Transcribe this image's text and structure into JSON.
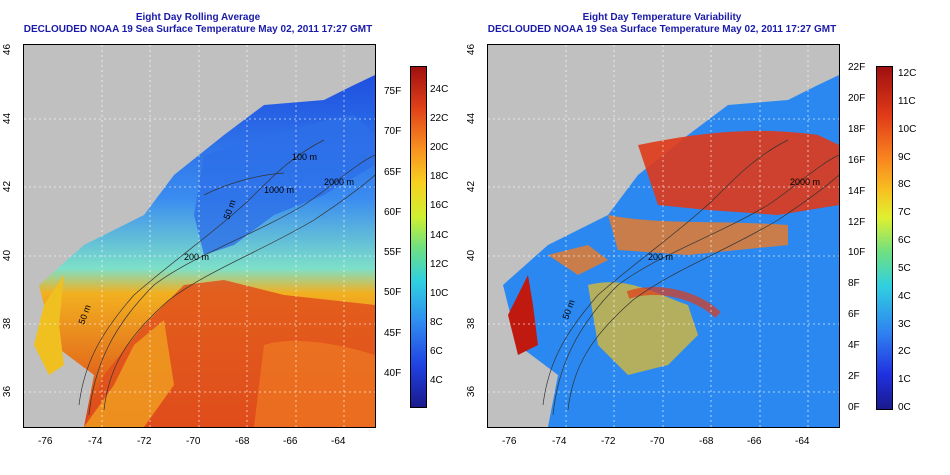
{
  "left_panel": {
    "title_line1": "Eight Day Rolling Average",
    "title_line2": "DECLOUDED NOAA 19 Sea Surface Temperature May 02, 2011 17:27 GMT",
    "colorbar_F": [
      "40F",
      "45F",
      "50F",
      "55F",
      "60F",
      "65F",
      "70F",
      "75F"
    ],
    "colorbar_C": [
      "4C",
      "6C",
      "8C",
      "10C",
      "12C",
      "14C",
      "16C",
      "18C",
      "20C",
      "22C",
      "24C"
    ],
    "contour_labels": [
      "100 m",
      "1000 m",
      "2000 m",
      "200 m",
      "50 m",
      "50 m"
    ]
  },
  "right_panel": {
    "title_line1": "Eight Day Temperature Variability",
    "title_line2": "DECLOUDED NOAA 19 Sea Surface Temperature May 02, 2011 17:27 GMT",
    "colorbar_F": [
      "0F",
      "2F",
      "4F",
      "6F",
      "8F",
      "10F",
      "12F",
      "14F",
      "16F",
      "18F",
      "20F",
      "22F"
    ],
    "colorbar_C": [
      "0C",
      "1C",
      "2C",
      "3C",
      "4C",
      "5C",
      "6C",
      "7C",
      "8C",
      "9C",
      "10C",
      "11C",
      "12C"
    ],
    "contour_labels": [
      "2000 m",
      "200 m",
      "50 m"
    ]
  },
  "axes": {
    "x_ticks": [
      "-76",
      "-74",
      "-72",
      "-70",
      "-68",
      "-66",
      "-64"
    ],
    "y_ticks": [
      "36",
      "38",
      "40",
      "42",
      "44",
      "46"
    ]
  },
  "colors": {
    "title": "#1a1aa8",
    "land": "#c0c0c0"
  }
}
